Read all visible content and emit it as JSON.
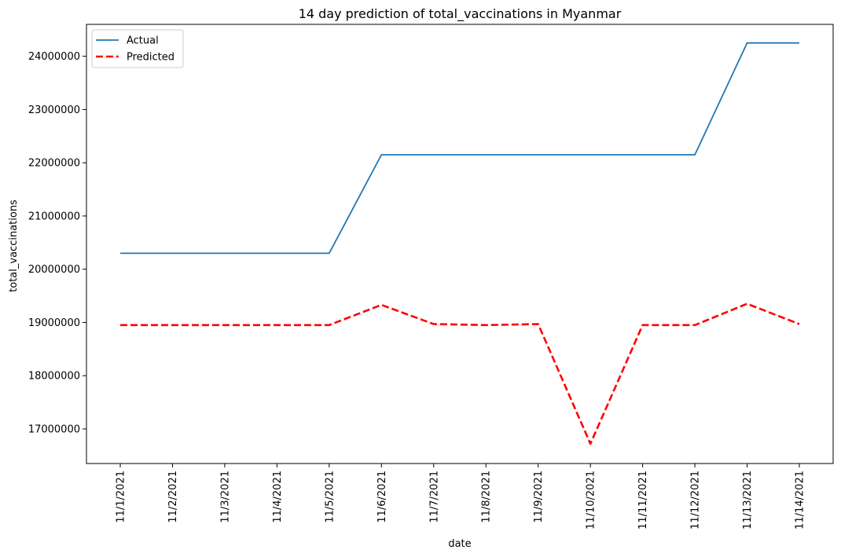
{
  "chart_data": {
    "type": "line",
    "title": "14 day prediction of total_vaccinations in Myanmar",
    "xlabel": "date",
    "ylabel": "total_vaccinations",
    "categories": [
      "11/1/2021",
      "11/2/2021",
      "11/3/2021",
      "11/4/2021",
      "11/5/2021",
      "11/6/2021",
      "11/7/2021",
      "11/8/2021",
      "11/9/2021",
      "11/10/2021",
      "11/11/2021",
      "11/12/2021",
      "11/13/2021",
      "11/14/2021"
    ],
    "yticks": [
      "17000000",
      "18000000",
      "19000000",
      "20000000",
      "21000000",
      "22000000",
      "23000000",
      "24000000"
    ],
    "ylim": [
      16350000,
      24600000
    ],
    "legend_position": "top-left",
    "grid": false,
    "series": [
      {
        "name": "Actual",
        "color": "#1f77b4",
        "style": "solid",
        "values": [
          20300000,
          20300000,
          20300000,
          20300000,
          20300000,
          22150000,
          22150000,
          22150000,
          22150000,
          22150000,
          22150000,
          22150000,
          24250000,
          24250000
        ]
      },
      {
        "name": "Predicted",
        "color": "#ff0000",
        "style": "dashed",
        "values": [
          18950000,
          18950000,
          18950000,
          18950000,
          18950000,
          19330000,
          18970000,
          18950000,
          18970000,
          16720000,
          18950000,
          18950000,
          19350000,
          18970000
        ]
      }
    ]
  }
}
